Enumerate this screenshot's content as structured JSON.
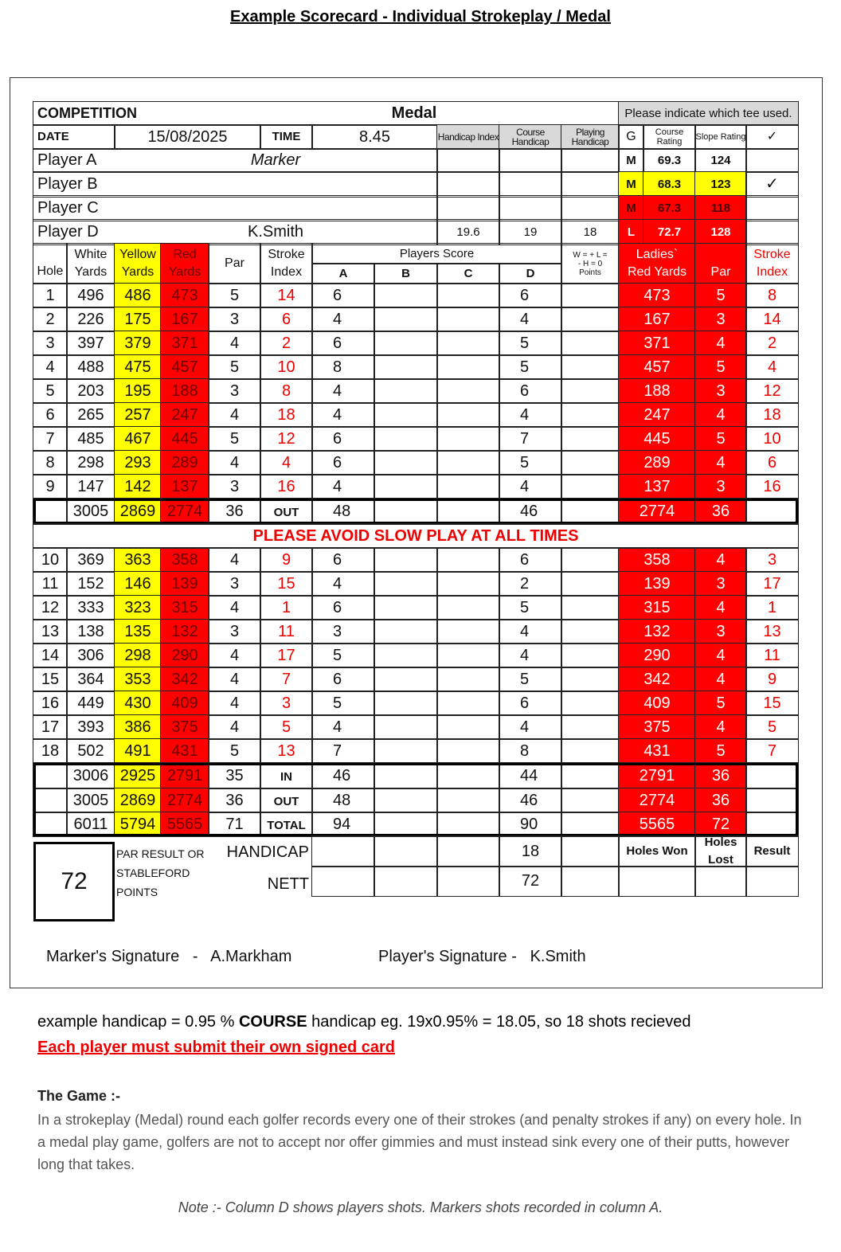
{
  "title": "Example Scorecard - Individual Strokeplay / Medal",
  "card": {
    "competition_label": "COMPETITION",
    "competition": "Medal",
    "tee_note": "Please indicate which tee used.",
    "date_label": "DATE",
    "date": "15/08/2025",
    "time_label": "TIME",
    "time": "8.45",
    "handicap_headers": [
      "Handicap Index",
      "Course Handicap",
      "Playing Handicap"
    ],
    "tee_headers": [
      "G",
      "Course Rating",
      "Slope Rating",
      "✓"
    ],
    "players": [
      {
        "label": "Player A",
        "note": "Marker"
      },
      {
        "label": "Player B"
      },
      {
        "label": "Player C"
      },
      {
        "label": "Player D",
        "name": "K.Smith",
        "handicaps": [
          "19.6",
          "19",
          "18"
        ]
      }
    ],
    "tees": [
      {
        "gender": "M",
        "rating": "69.3",
        "slope": "124"
      },
      {
        "gender": "M",
        "rating": "68.3",
        "slope": "123",
        "check": "✓"
      },
      {
        "gender": "M",
        "rating": "67.3",
        "slope": "118"
      },
      {
        "gender": "L",
        "rating": "72.7",
        "slope": "128"
      }
    ],
    "columns": [
      "Hole",
      "White Yards",
      "Yellow Yards",
      "Red Yards",
      "Par",
      "Stroke Index"
    ],
    "players_score": "Players Score",
    "score_columns": [
      "A",
      "B",
      "C",
      "D"
    ],
    "points_header": "W = + L = - H = 0 Points",
    "ladies_columns": [
      "Ladies` Red Yards",
      "Par",
      "Stroke Index"
    ],
    "holes": [
      [
        1,
        496,
        486,
        473,
        5,
        14,
        6,
        6,
        473,
        5,
        8
      ],
      [
        2,
        226,
        175,
        167,
        3,
        6,
        4,
        4,
        167,
        3,
        14
      ],
      [
        3,
        397,
        379,
        371,
        4,
        2,
        6,
        5,
        371,
        4,
        2
      ],
      [
        4,
        488,
        475,
        457,
        5,
        10,
        8,
        5,
        457,
        5,
        4
      ],
      [
        5,
        203,
        195,
        188,
        3,
        8,
        4,
        6,
        188,
        3,
        12
      ],
      [
        6,
        265,
        257,
        247,
        4,
        18,
        4,
        4,
        247,
        4,
        18
      ],
      [
        7,
        485,
        467,
        445,
        5,
        12,
        6,
        7,
        445,
        5,
        10
      ],
      [
        8,
        298,
        293,
        289,
        4,
        4,
        6,
        5,
        289,
        4,
        6
      ],
      [
        9,
        147,
        142,
        137,
        3,
        16,
        4,
        4,
        137,
        3,
        16
      ],
      [
        10,
        369,
        363,
        358,
        4,
        9,
        6,
        6,
        358,
        4,
        3
      ],
      [
        11,
        152,
        146,
        139,
        3,
        15,
        4,
        2,
        139,
        3,
        17
      ],
      [
        12,
        333,
        323,
        315,
        4,
        1,
        6,
        5,
        315,
        4,
        1
      ],
      [
        13,
        138,
        135,
        132,
        3,
        11,
        3,
        4,
        132,
        3,
        13
      ],
      [
        14,
        306,
        298,
        290,
        4,
        17,
        5,
        4,
        290,
        4,
        11
      ],
      [
        15,
        364,
        353,
        342,
        4,
        7,
        6,
        5,
        342,
        4,
        9
      ],
      [
        16,
        449,
        430,
        409,
        4,
        3,
        5,
        6,
        409,
        5,
        15
      ],
      [
        17,
        393,
        386,
        375,
        4,
        5,
        4,
        4,
        375,
        4,
        5
      ],
      [
        18,
        502,
        491,
        431,
        5,
        13,
        7,
        8,
        431,
        5,
        7
      ]
    ],
    "totals": [
      [
        3005,
        2869,
        2774,
        36,
        "OUT",
        48,
        46,
        2774,
        36
      ],
      [
        3006,
        2925,
        2791,
        35,
        "IN",
        46,
        44,
        2791,
        36
      ],
      [
        3005,
        2869,
        2774,
        36,
        "OUT",
        48,
        46,
        2774,
        36
      ],
      [
        6011,
        5794,
        5565,
        71,
        "TOTAL",
        94,
        90,
        5565,
        72
      ]
    ],
    "slow_play": "PLEASE AVOID SLOW PLAY AT ALL TIMES",
    "result": "72",
    "result_label": "PAR RESULT OR STABLEFORD POINTS",
    "handicap_label": "HANDICAP",
    "handicap_d": "18",
    "nett_label": "NETT",
    "nett_d": "72",
    "match_headers": [
      "Holes Won",
      "Holes Lost",
      "Result"
    ],
    "marker_signature": "Marker's Signature   -   A.Markham",
    "player_signature": "Player's Signature -   K.Smith"
  },
  "notes": {
    "handicap": [
      "example handicap = 0.95 %",
      "COURSE",
      "handicap eg. 19x0.95% = 18.05, so 18 shots recieved"
    ],
    "warning": "Each player must submit their own signed card",
    "game_title": "The Game :-",
    "game_text": "In a strokeplay (Medal) round each golfer records every one of their strokes (and penalty strokes if any) on every hole. In a medal play game, golfers are not to accept nor offer gimmies and must instead sink every one of their putts, however long that takes.",
    "footnote": "Note :- Column D shows players shots. Markers shots recorded in column A."
  }
}
